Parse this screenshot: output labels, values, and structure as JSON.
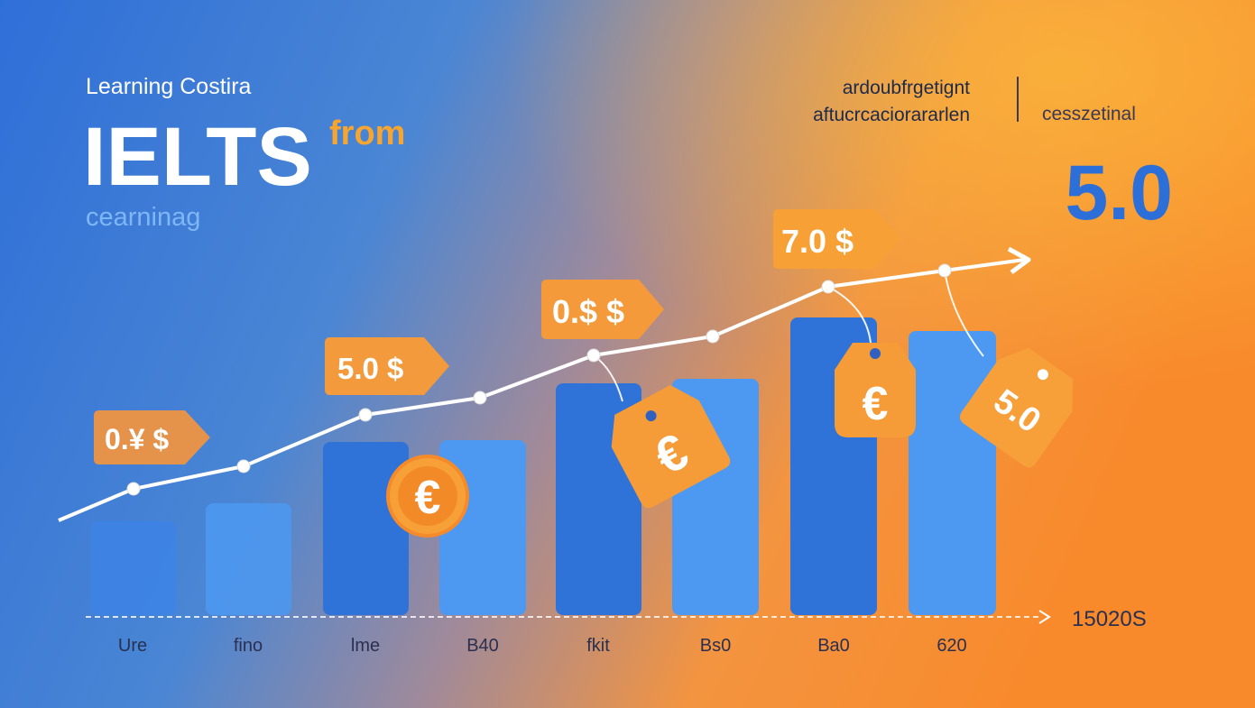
{
  "header": {
    "kicker": "Learning Costira",
    "title": "IELTS",
    "title_accent": "from",
    "subtitle": "cearninag"
  },
  "right_panel": {
    "line1": "ardoubfrgetignt",
    "line2": "aftucrcaciorararlen",
    "side_label": "cesszetinal",
    "score": "5.0"
  },
  "tags": [
    "0.¥ $",
    "5.0 $",
    "0.$ $",
    "7.0 $"
  ],
  "coins": [
    "€"
  ],
  "hanging_tags": [
    "€",
    "€",
    "5.0"
  ],
  "x_labels": [
    "Ure",
    "fino",
    "lme",
    "B40",
    "fkit",
    "Bs0",
    "Ba0",
    "620"
  ],
  "axis_end_label": "15020S"
}
